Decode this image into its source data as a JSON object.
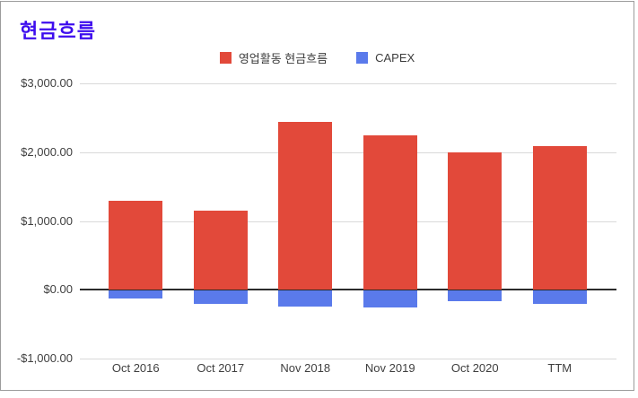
{
  "card": {
    "title": "현금흐름",
    "title_color": "#3d0cee",
    "border_color": "#9c9c9c",
    "background": "#ffffff"
  },
  "legend": {
    "items": [
      {
        "label": "영업활동 현금흐름",
        "color": "#e2493a"
      },
      {
        "label": "CAPEX",
        "color": "#5a7aeb"
      }
    ]
  },
  "chart_data": {
    "type": "bar",
    "title": "현금흐름",
    "categories": [
      "Oct 2016",
      "Oct 2017",
      "Nov 2018",
      "Nov 2019",
      "Oct 2020",
      "TTM"
    ],
    "series": [
      {
        "name": "영업활동 현금흐름",
        "color": "#e2493a",
        "values": [
          1290,
          1150,
          2440,
          2250,
          2000,
          2090
        ]
      },
      {
        "name": "CAPEX",
        "color": "#5a7aeb",
        "values": [
          -130,
          -210,
          -250,
          -260,
          -160,
          -200
        ]
      }
    ],
    "xlabel": "",
    "ylabel": "",
    "ylim": [
      -1000,
      3000
    ],
    "yticks": [
      3000,
      2000,
      1000,
      0,
      -1000
    ],
    "ytick_labels": [
      "$3,000.00",
      "$2,000.00",
      "$1,000.00",
      "$0.00",
      "-$1,000.00"
    ],
    "grid": true,
    "gridline_color": "#d9d9d9",
    "zero_line_color": "#2b2b2b",
    "legend_position": "top-center"
  }
}
